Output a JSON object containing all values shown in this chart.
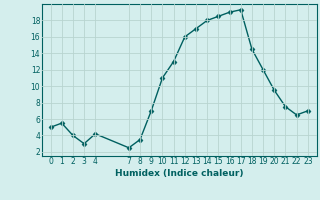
{
  "x": [
    0,
    1,
    2,
    3,
    4,
    7,
    8,
    9,
    10,
    11,
    12,
    13,
    14,
    15,
    16,
    17,
    18,
    19,
    20,
    21,
    22,
    23
  ],
  "y": [
    5.0,
    5.5,
    4.0,
    3.0,
    4.2,
    2.5,
    3.5,
    7.0,
    11.0,
    13.0,
    16.0,
    17.0,
    18.0,
    18.5,
    19.0,
    19.3,
    14.5,
    12.0,
    9.5,
    7.5,
    6.5,
    7.0
  ],
  "xlabel": "Humidex (Indice chaleur)",
  "ylim": [
    1.5,
    20.0
  ],
  "xlim": [
    -0.8,
    23.8
  ],
  "yticks": [
    2,
    4,
    6,
    8,
    10,
    12,
    14,
    16,
    18
  ],
  "xticks": [
    0,
    1,
    2,
    3,
    4,
    7,
    8,
    9,
    10,
    11,
    12,
    13,
    14,
    15,
    16,
    17,
    18,
    19,
    20,
    21,
    22,
    23
  ],
  "line_color": "#006060",
  "marker": "D",
  "marker_size": 2.5,
  "linewidth": 1.0,
  "bg_color": "#d4eeed",
  "grid_color": "#b8d4d0"
}
